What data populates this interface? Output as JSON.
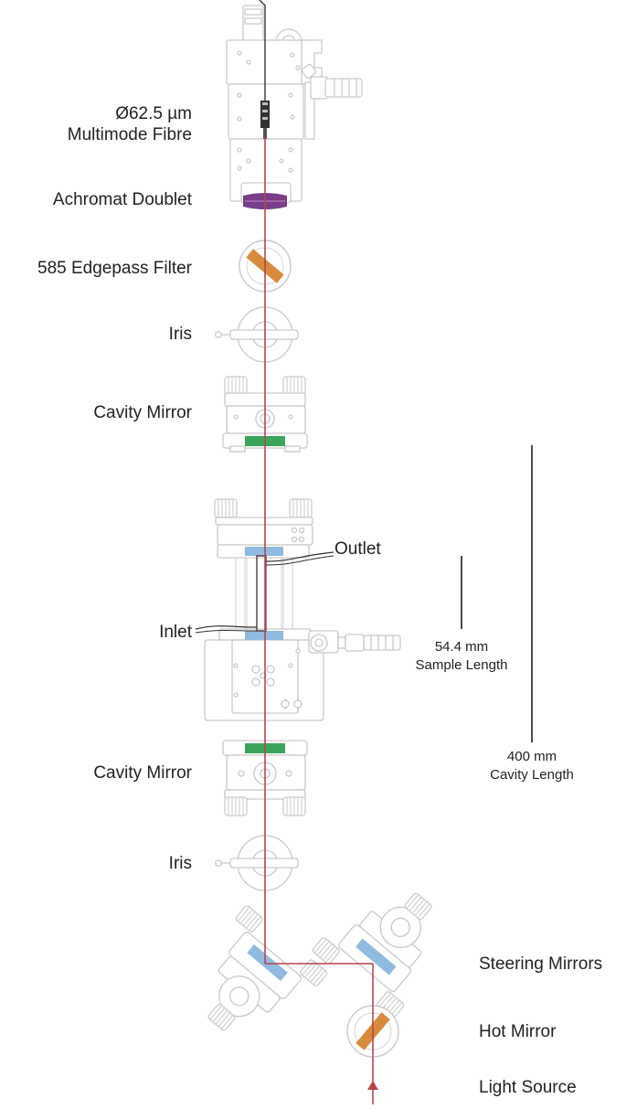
{
  "labels": {
    "fibre_line1": "Ø62.5 µm",
    "fibre_line2": "Multimode Fibre",
    "achromat": "Achromat Doublet",
    "filter": "585  Edgepass Filter",
    "iris_top": "Iris",
    "cavity_mirror_top": "Cavity Mirror",
    "outlet": "Outlet",
    "inlet": "Inlet",
    "sample_length_value": "54.4 mm",
    "sample_length_label": "Sample Length",
    "cavity_mirror_bottom": "Cavity Mirror",
    "cavity_length_value": "400 mm",
    "cavity_length_label": "Cavity Length",
    "iris_bottom": "Iris",
    "steering_mirrors": "Steering Mirrors",
    "hot_mirror": "Hot Mirror",
    "light_source": "Light Source"
  },
  "colors": {
    "beam": "#b3474c",
    "lens": "#7b3c8a",
    "filter": "#d88a3c",
    "cavity_mirror": "#3aa55a",
    "window": "#8fbbe0",
    "hardware_stroke": "#c9c9c9",
    "tube": "#4a2a2e"
  }
}
